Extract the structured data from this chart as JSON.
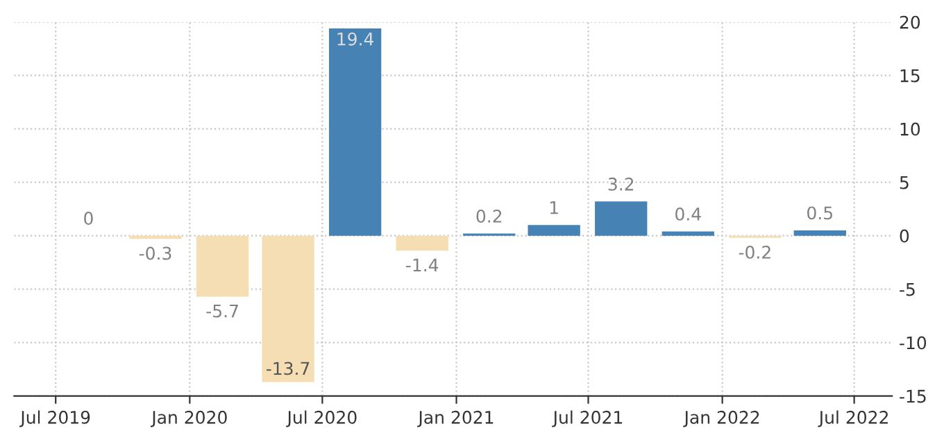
{
  "chart_data": {
    "type": "bar",
    "x": [
      "2019-08-15",
      "2019-11-15",
      "2020-02-15",
      "2020-05-15",
      "2020-08-15",
      "2020-11-15",
      "2021-02-15",
      "2021-05-15",
      "2021-08-15",
      "2021-11-15",
      "2022-02-15",
      "2022-05-15"
    ],
    "values": [
      0,
      -0.3,
      -5.7,
      -13.7,
      19.4,
      -1.4,
      0.2,
      1,
      3.2,
      0.4,
      -0.2,
      0.5
    ],
    "colors": [
      "#f5deb3",
      "#f5deb3",
      "#f5deb3",
      "#f5deb3",
      "#4682b4",
      "#f5deb3",
      "#4682b4",
      "#4682b4",
      "#4682b4",
      "#4682b4",
      "#f5deb3",
      "#4682b4"
    ],
    "data_labels": true,
    "xlim": [
      "2019-05-05",
      "2022-08-22"
    ],
    "xticks": [
      {
        "value": "2019-07-01",
        "label": "Jul 2019"
      },
      {
        "value": "2020-01-01",
        "label": "Jan 2020"
      },
      {
        "value": "2020-07-01",
        "label": "Jul 2020"
      },
      {
        "value": "2021-01-01",
        "label": "Jan 2021"
      },
      {
        "value": "2021-07-01",
        "label": "Jul 2021"
      },
      {
        "value": "2022-01-01",
        "label": "Jan 2022"
      },
      {
        "value": "2022-07-01",
        "label": "Jul 2022"
      }
    ],
    "ylim": [
      -15,
      20
    ],
    "yticks": [
      -15,
      -10,
      -5,
      0,
      5,
      10,
      15,
      20
    ],
    "grid": true
  }
}
